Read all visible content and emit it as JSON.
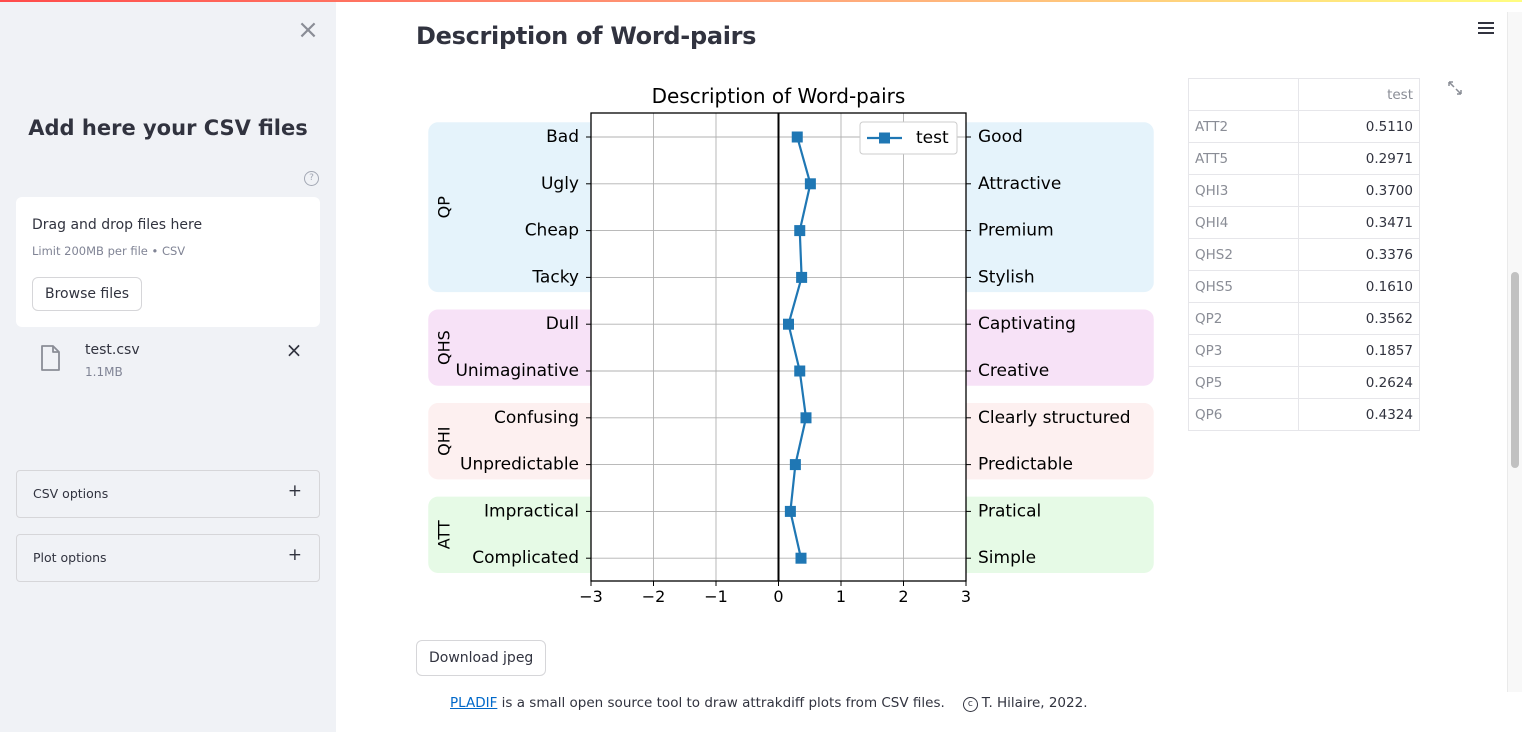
{
  "sidebar": {
    "close_label": "×",
    "title": "Add here your CSV files",
    "uploader": {
      "drag_text": "Drag and drop files here",
      "limit_text": "Limit 200MB per file • CSV",
      "browse_label": "Browse files"
    },
    "file": {
      "name": "test.csv",
      "size": "1.1MB",
      "remove_label": "×"
    },
    "expanders": [
      {
        "label": "CSV options"
      },
      {
        "label": "Plot options"
      }
    ]
  },
  "main": {
    "title": "Description of Word-pairs",
    "download_label": "Download jpeg",
    "footer": {
      "link_text": "PLADIF",
      "text": " is a small open source tool to draw attrakdiff plots from CSV files.",
      "copyright": "T. Hilaire, 2022."
    }
  },
  "colors": {
    "accent": "#ff4b4b",
    "series": "#1f77b4",
    "group_QP": "#e5f3fb",
    "group_QHS": "#f7e2f7",
    "group_QHI": "#fdf0f0",
    "group_ATT": "#e6fae6"
  },
  "table": {
    "header": "test",
    "rows": [
      {
        "name": "ATT2",
        "value": "0.5110"
      },
      {
        "name": "ATT5",
        "value": "0.2971"
      },
      {
        "name": "QHI3",
        "value": "0.3700"
      },
      {
        "name": "QHI4",
        "value": "0.3471"
      },
      {
        "name": "QHS2",
        "value": "0.3376"
      },
      {
        "name": "QHS5",
        "value": "0.1610"
      },
      {
        "name": "QP2",
        "value": "0.3562"
      },
      {
        "name": "QP3",
        "value": "0.1857"
      },
      {
        "name": "QP5",
        "value": "0.2624"
      },
      {
        "name": "QP6",
        "value": "0.4324"
      }
    ]
  },
  "chart_data": {
    "type": "line",
    "title": "Description of Word-pairs",
    "xlim": [
      -3,
      3
    ],
    "x_ticks": [
      "−3",
      "−2",
      "−1",
      "0",
      "1",
      "2",
      "3"
    ],
    "grid": true,
    "legend_position": "top-right",
    "left_labels": [
      "Bad",
      "Ugly",
      "Cheap",
      "Tacky",
      "Dull",
      "Unimaginative",
      "Confusing",
      "Unpredictable",
      "Impractical",
      "Complicated"
    ],
    "right_labels": [
      "Good",
      "Attractive",
      "Premium",
      "Stylish",
      "Captivating",
      "Creative",
      "Clearly structured",
      "Predictable",
      "Pratical",
      "Simple"
    ],
    "groups": [
      {
        "name": "QP",
        "start": 0,
        "end": 3,
        "color": "#e5f3fb"
      },
      {
        "name": "QHS",
        "start": 4,
        "end": 5,
        "color": "#f7e2f7"
      },
      {
        "name": "QHI",
        "start": 6,
        "end": 7,
        "color": "#fdf0f0"
      },
      {
        "name": "ATT",
        "start": 8,
        "end": 9,
        "color": "#e6fae6"
      }
    ],
    "series": [
      {
        "name": "test",
        "color": "#1f77b4",
        "values": [
          0.3,
          0.51,
          0.34,
          0.37,
          0.16,
          0.34,
          0.44,
          0.27,
          0.19,
          0.36
        ]
      }
    ]
  }
}
